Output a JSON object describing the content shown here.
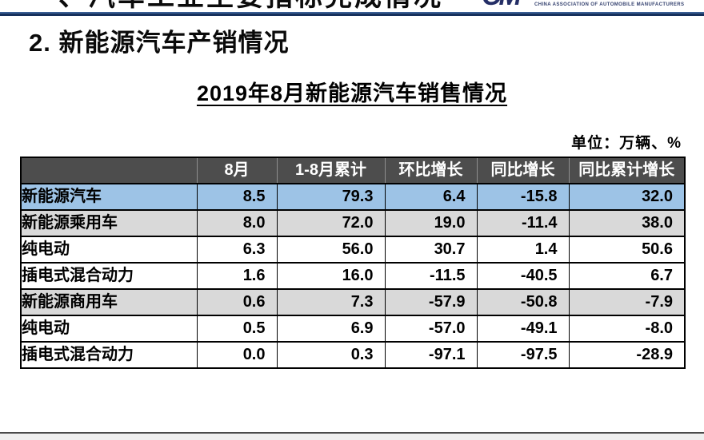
{
  "page": {
    "top_header": "一、汽车工业主要指标完成情况",
    "section_title": "2. 新能源汽车产销情况",
    "table_title": "2019年8月新能源汽车销售情况",
    "unit_label": "单位：万辆、%"
  },
  "logo": {
    "mark": "CM",
    "text": "CHINA ASSOCIATION OF AUTOMOBILE MANUFACTURERS"
  },
  "colors": {
    "navy_rule": "#16305c",
    "logo_navy": "#242e66",
    "header_bg": "#4d4d4d",
    "highlight_row_bg": "#9dc3e6",
    "subtotal_row_bg": "#d9d9d9"
  },
  "table": {
    "columns": [
      "",
      "8月",
      "1-8月累计",
      "环比增长",
      "同比增长",
      "同比累计增长"
    ],
    "rows": [
      {
        "label": "新能源汽车",
        "indent": 0,
        "style": "highlight",
        "values": [
          "8.5",
          "79.3",
          "6.4",
          "-15.8",
          "32.0"
        ]
      },
      {
        "label": "新能源乘用车",
        "indent": 1,
        "style": "subtotal",
        "values": [
          "8.0",
          "72.0",
          "19.0",
          "-11.4",
          "38.0"
        ]
      },
      {
        "label": "纯电动",
        "indent": 2,
        "style": "plain",
        "values": [
          "6.3",
          "56.0",
          "30.7",
          "1.4",
          "50.6"
        ]
      },
      {
        "label": "插电式混合动力",
        "indent": 2,
        "style": "plain",
        "values": [
          "1.6",
          "16.0",
          "-11.5",
          "-40.5",
          "6.7"
        ]
      },
      {
        "label": "新能源商用车",
        "indent": 1,
        "style": "subtotal",
        "values": [
          "0.6",
          "7.3",
          "-57.9",
          "-50.8",
          "-7.9"
        ]
      },
      {
        "label": "纯电动",
        "indent": 2,
        "style": "plain",
        "values": [
          "0.5",
          "6.9",
          "-57.0",
          "-49.1",
          "-8.0"
        ]
      },
      {
        "label": "插电式混合动力",
        "indent": 2,
        "style": "plain",
        "values": [
          "0.0",
          "0.3",
          "-97.1",
          "-97.5",
          "-28.9"
        ]
      }
    ]
  }
}
